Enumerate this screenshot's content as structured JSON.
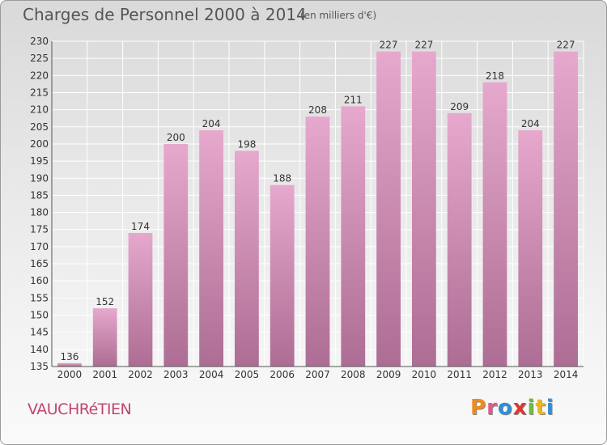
{
  "header": {
    "title": "Charges de Personnel 2000 à 2014",
    "unit": "(en milliers d'€)"
  },
  "footer": {
    "commune": "VAUCHRéTIEN",
    "logo": "Proxiti"
  },
  "colors": {
    "bar_top": "#e6a8cc",
    "bar_bottom": "#ad6d94",
    "grid": "#ffffff",
    "commune": "#c2456e",
    "logo_letters": [
      "#f08a1c",
      "#e05a8a",
      "#2f8fd6",
      "#e3342f",
      "#6cbf3a",
      "#f0b51c",
      "#2f8fd6"
    ]
  },
  "chart_data": {
    "type": "bar",
    "title": "Charges de Personnel 2000 à 2014",
    "subtitle": "(en milliers d'€)",
    "xlabel": "",
    "ylabel": "",
    "categories": [
      "2000",
      "2001",
      "2002",
      "2003",
      "2004",
      "2005",
      "2006",
      "2007",
      "2008",
      "2009",
      "2010",
      "2011",
      "2012",
      "2013",
      "2014"
    ],
    "values": [
      136,
      152,
      174,
      200,
      204,
      198,
      188,
      208,
      211,
      227,
      227,
      209,
      218,
      204,
      227
    ],
    "ylim": [
      135,
      230
    ],
    "yticks": [
      135,
      140,
      145,
      150,
      155,
      160,
      165,
      170,
      175,
      180,
      185,
      190,
      195,
      200,
      205,
      210,
      215,
      220,
      225,
      230
    ],
    "grid": true,
    "legend": "none"
  }
}
